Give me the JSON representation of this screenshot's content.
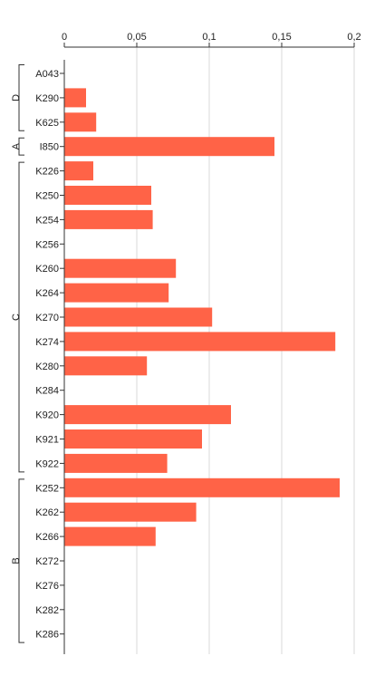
{
  "chart_data": {
    "type": "bar",
    "orientation": "horizontal",
    "x_tick_labels": [
      "0",
      "0,05",
      "0,1",
      "0,15",
      "0,2"
    ],
    "x_ticks": [
      0,
      0.05,
      0.1,
      0.15,
      0.2
    ],
    "xlim": [
      0,
      0.2
    ],
    "grid": true,
    "bar_color": "#ff6347",
    "categories": [
      "A043",
      "K290",
      "K625",
      "I850",
      "K226",
      "K250",
      "K254",
      "K256",
      "K260",
      "K264",
      "K270",
      "K274",
      "K280",
      "K284",
      "K920",
      "K921",
      "K922",
      "K252",
      "K262",
      "K266",
      "K272",
      "K276",
      "K282",
      "K286"
    ],
    "values": [
      0,
      0.015,
      0.022,
      0.145,
      0.02,
      0.06,
      0.061,
      0,
      0.077,
      0.072,
      0.102,
      0.187,
      0.057,
      0,
      0.115,
      0.095,
      0.071,
      0.19,
      0.091,
      0.063,
      0,
      0,
      0,
      0
    ],
    "groups": [
      {
        "label": "D",
        "start": 0,
        "end": 2
      },
      {
        "label": "A",
        "start": 3,
        "end": 3
      },
      {
        "label": "C",
        "start": 4,
        "end": 16
      },
      {
        "label": "B",
        "start": 17,
        "end": 23
      }
    ]
  }
}
